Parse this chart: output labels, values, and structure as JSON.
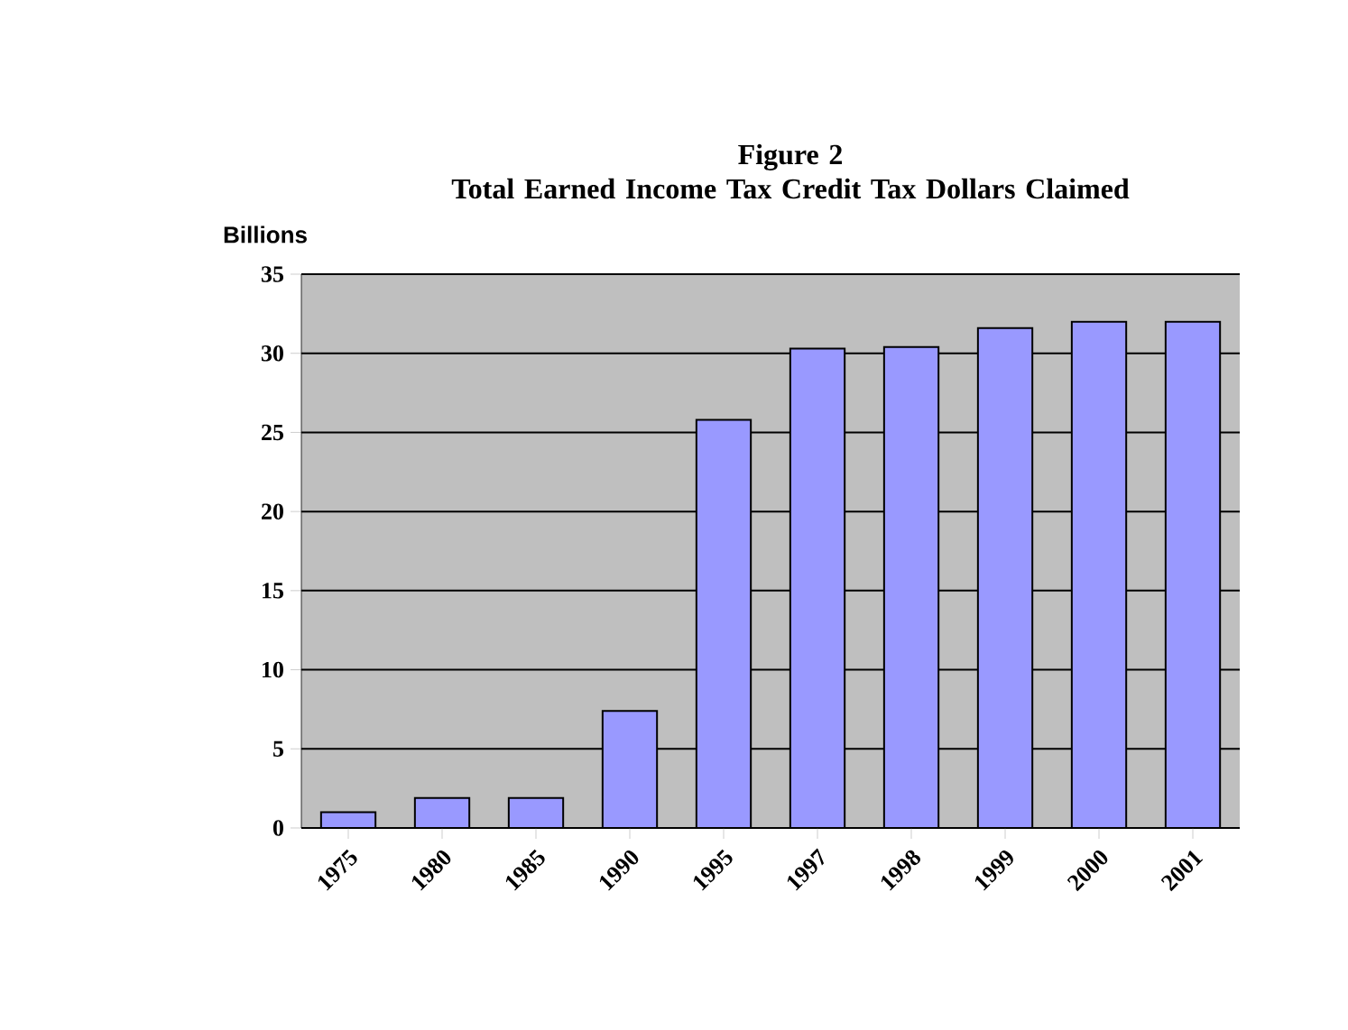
{
  "chart_data": {
    "type": "bar",
    "title": "Figure 2",
    "subtitle": "Total Earned Income Tax Credit Tax Dollars Claimed",
    "ylabel": "Billions",
    "categories": [
      "1975",
      "1980",
      "1985",
      "1990",
      "1995",
      "1997",
      "1998",
      "1999",
      "2000",
      "2001"
    ],
    "values": [
      1.0,
      1.9,
      1.9,
      7.4,
      25.8,
      30.3,
      30.4,
      31.6,
      32.0,
      32.0
    ],
    "color": "#9999ff",
    "ylim": [
      0,
      35
    ],
    "yticks": [
      0,
      5,
      10,
      15,
      20,
      25,
      30,
      35
    ],
    "grid": "y"
  }
}
